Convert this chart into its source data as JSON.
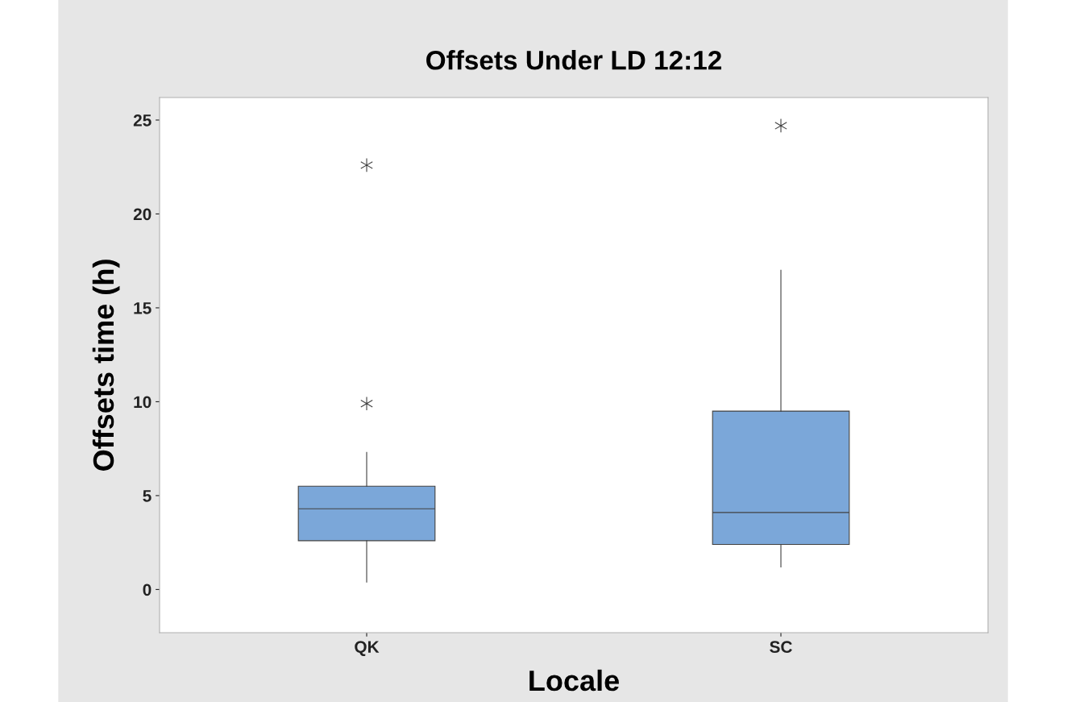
{
  "chart_data": {
    "type": "box",
    "title": "Offsets Under LD 12:12",
    "xlabel": "Locale",
    "ylabel": "Offsets time (h)",
    "categories": [
      "QK",
      "SC"
    ],
    "boxes": [
      {
        "low": 0.4,
        "q1": 2.6,
        "median": 4.3,
        "q3": 5.5,
        "high": 7.3,
        "outliers": [
          9.9,
          22.6
        ]
      },
      {
        "low": 1.2,
        "q1": 2.4,
        "median": 4.1,
        "q3": 9.5,
        "high": 17.0,
        "outliers": [
          24.7
        ]
      }
    ],
    "color": "#7ba7d9",
    "ylim": [
      -2.3,
      26.2
    ],
    "yticks": [
      0,
      5,
      10,
      15,
      20,
      25
    ],
    "grid": false,
    "legend": false,
    "marker": "star"
  }
}
